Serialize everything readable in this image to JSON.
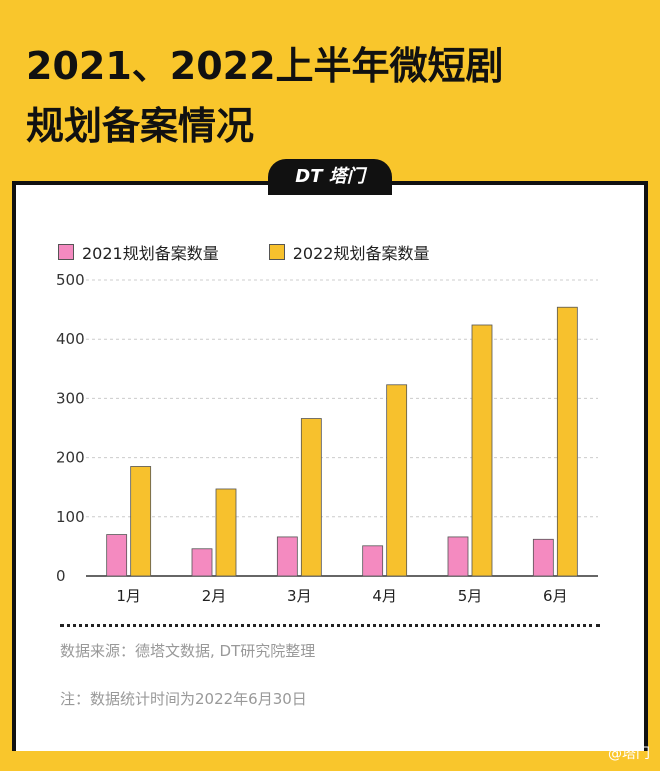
{
  "title_line1": "2021、2022上半年微短剧",
  "title_line2": "规划备案情况",
  "badge": "DT 塔门",
  "source": "数据来源：德塔文数据, DT研究院整理",
  "note": "注：数据统计时间为2022年6月30日",
  "watermark": "@塔门",
  "colors": {
    "s2021": "#F48AC0",
    "s2022": "#F7C12D",
    "bg": "#F9C62C"
  },
  "chart_data": {
    "type": "bar",
    "categories": [
      "1月",
      "2月",
      "3月",
      "4月",
      "5月",
      "6月"
    ],
    "series": [
      {
        "name": "2021规划备案数量",
        "values": [
          70,
          46,
          66,
          51,
          66,
          62
        ]
      },
      {
        "name": "2022规划备案数量",
        "values": [
          185,
          147,
          266,
          323,
          424,
          454
        ]
      }
    ],
    "yticks": [
      "0",
      "100",
      "200",
      "300",
      "400",
      "500"
    ],
    "ylim": [
      0,
      500
    ],
    "grid": true,
    "legend": "top-left"
  }
}
